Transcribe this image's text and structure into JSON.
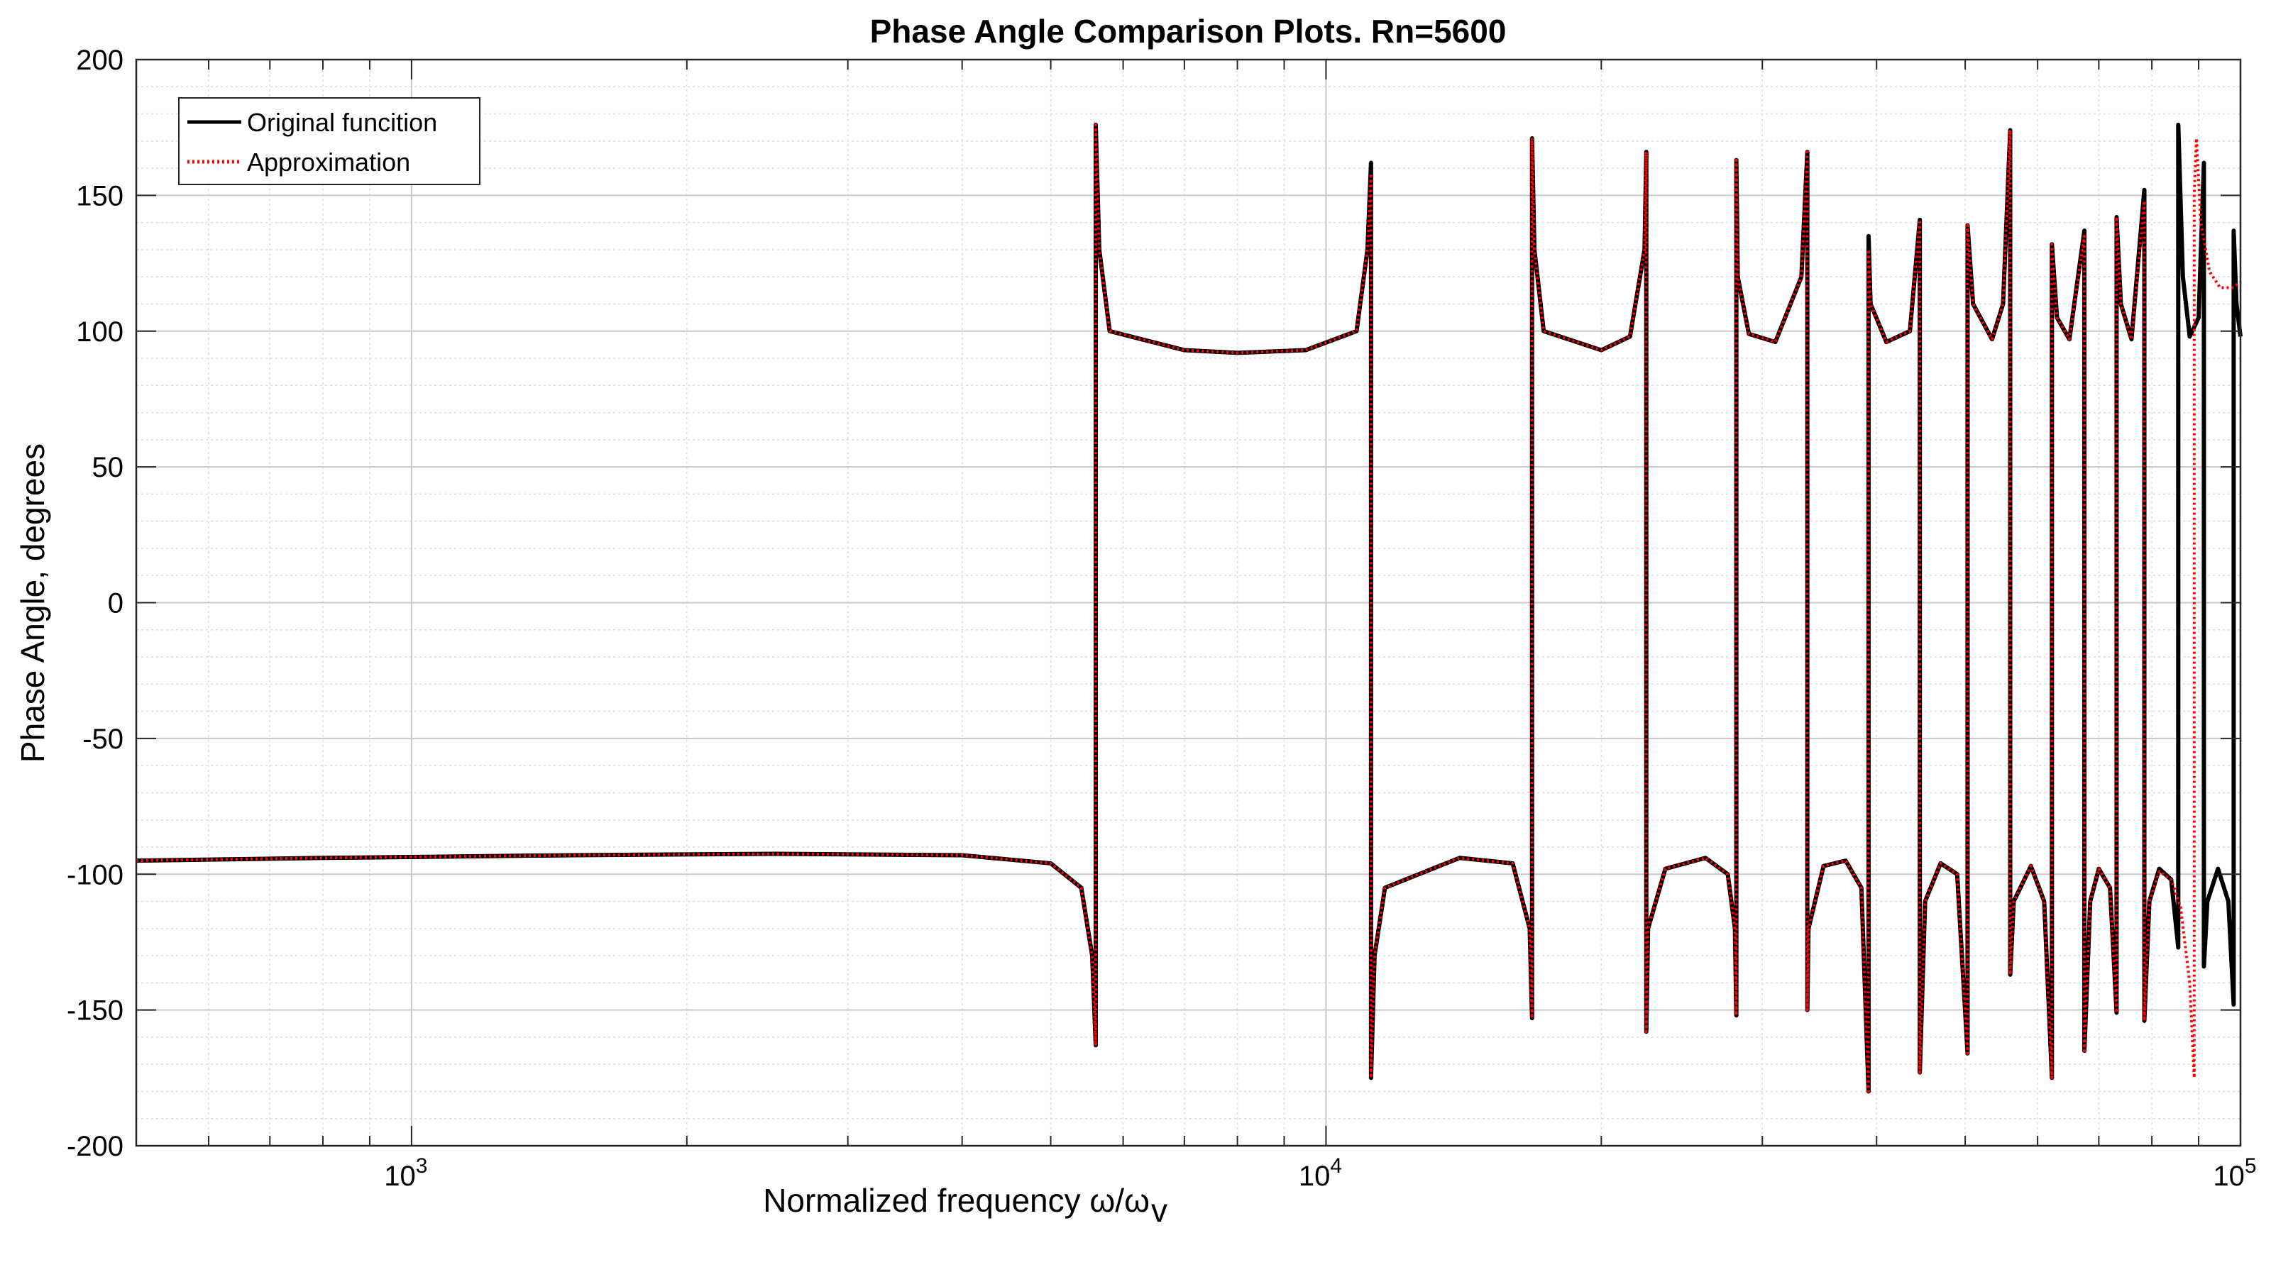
{
  "chart_data": {
    "type": "line",
    "title": "Phase Angle Comparison Plots. Rn=5600",
    "xlabel": "Normalized frequency ω/ω",
    "xlabel_subscript": "v",
    "ylabel": "Phase Angle, degrees",
    "xscale": "log",
    "xlim": [
      500,
      100000
    ],
    "ylim": [
      -200,
      200
    ],
    "yticks": [
      -200,
      -150,
      -100,
      -50,
      0,
      50,
      100,
      150,
      200
    ],
    "xticks": [
      {
        "value": 1000,
        "base": "10",
        "exp": "3"
      },
      {
        "value": 10000,
        "base": "10",
        "exp": "4"
      },
      {
        "value": 100000,
        "base": "10",
        "exp": "5"
      }
    ],
    "grid": true,
    "minor_grid": true,
    "legend_position": "top-left",
    "series": [
      {
        "name": "Original funcition",
        "color": "#000000",
        "style": "solid",
        "points": [
          [
            500,
            -95
          ],
          [
            800,
            -94
          ],
          [
            1500,
            -93
          ],
          [
            2500,
            -92.5
          ],
          [
            4000,
            -93
          ],
          [
            5000,
            -96
          ],
          [
            5400,
            -105
          ],
          [
            5550,
            -130
          ],
          [
            5600,
            -163
          ],
          [
            5600,
            176
          ],
          [
            5650,
            130
          ],
          [
            5800,
            100
          ],
          [
            7000,
            93
          ],
          [
            8000,
            92
          ],
          [
            9500,
            93
          ],
          [
            10800,
            100
          ],
          [
            11100,
            130
          ],
          [
            11200,
            162
          ],
          [
            11200,
            -175
          ],
          [
            11300,
            -130
          ],
          [
            11600,
            -105
          ],
          [
            14000,
            -94
          ],
          [
            16000,
            -96
          ],
          [
            16700,
            -120
          ],
          [
            16800,
            -153
          ],
          [
            16800,
            171
          ],
          [
            16900,
            130
          ],
          [
            17300,
            100
          ],
          [
            20000,
            93
          ],
          [
            21500,
            98
          ],
          [
            22300,
            130
          ],
          [
            22400,
            166
          ],
          [
            22400,
            -158
          ],
          [
            22500,
            -120
          ],
          [
            23500,
            -98
          ],
          [
            26000,
            -94
          ],
          [
            27500,
            -100
          ],
          [
            28000,
            -120
          ],
          [
            28100,
            -152
          ],
          [
            28100,
            163
          ],
          [
            28200,
            120
          ],
          [
            29000,
            99
          ],
          [
            31000,
            96
          ],
          [
            33100,
            120
          ],
          [
            33600,
            166
          ],
          [
            33600,
            -150
          ],
          [
            33700,
            -120
          ],
          [
            35000,
            -97
          ],
          [
            37000,
            -95
          ],
          [
            38500,
            -105
          ],
          [
            39200,
            -180
          ],
          [
            39200,
            135
          ],
          [
            39400,
            110
          ],
          [
            41000,
            96
          ],
          [
            43500,
            100
          ],
          [
            44600,
            141
          ],
          [
            44600,
            -173
          ],
          [
            45200,
            -110
          ],
          [
            47000,
            -96
          ],
          [
            49000,
            -100
          ],
          [
            50300,
            -166
          ],
          [
            50300,
            139
          ],
          [
            51000,
            110
          ],
          [
            53500,
            97
          ],
          [
            55000,
            110
          ],
          [
            56000,
            174
          ],
          [
            56000,
            -137
          ],
          [
            56500,
            -110
          ],
          [
            59000,
            -97
          ],
          [
            61000,
            -110
          ],
          [
            62200,
            -175
          ],
          [
            62200,
            132
          ],
          [
            63000,
            105
          ],
          [
            65000,
            97
          ],
          [
            67500,
            137
          ],
          [
            67500,
            -165
          ],
          [
            68500,
            -110
          ],
          [
            70000,
            -98
          ],
          [
            72000,
            -105
          ],
          [
            73200,
            -151
          ],
          [
            73200,
            142
          ],
          [
            74000,
            110
          ],
          [
            76000,
            97
          ],
          [
            78500,
            152
          ],
          [
            78500,
            -154
          ],
          [
            79500,
            -110
          ],
          [
            81500,
            -98
          ],
          [
            84000,
            -102
          ],
          [
            85500,
            -127
          ],
          [
            85500,
            176
          ],
          [
            86500,
            120
          ],
          [
            88000,
            98
          ],
          [
            90000,
            105
          ],
          [
            91200,
            162
          ],
          [
            91200,
            -134
          ],
          [
            92000,
            -110
          ],
          [
            94500,
            -98
          ],
          [
            97000,
            -110
          ],
          [
            98300,
            -148
          ],
          [
            98300,
            137
          ],
          [
            99000,
            110
          ],
          [
            100000,
            98
          ]
        ]
      },
      {
        "name": "Approximation",
        "color": "#ff0000",
        "style": "dotted",
        "points": [
          [
            500,
            -95
          ],
          [
            800,
            -94
          ],
          [
            1500,
            -93
          ],
          [
            2500,
            -92.5
          ],
          [
            4000,
            -93
          ],
          [
            5000,
            -96
          ],
          [
            5400,
            -105
          ],
          [
            5550,
            -130
          ],
          [
            5600,
            -163
          ],
          [
            5600,
            176
          ],
          [
            5650,
            130
          ],
          [
            5800,
            100
          ],
          [
            7000,
            93
          ],
          [
            8000,
            92
          ],
          [
            9500,
            93
          ],
          [
            10800,
            100
          ],
          [
            11100,
            130
          ],
          [
            11200,
            158
          ],
          [
            11200,
            -175
          ],
          [
            11300,
            -130
          ],
          [
            11600,
            -105
          ],
          [
            14000,
            -94
          ],
          [
            16000,
            -96
          ],
          [
            16700,
            -120
          ],
          [
            16800,
            -153
          ],
          [
            16800,
            171
          ],
          [
            16900,
            130
          ],
          [
            17300,
            100
          ],
          [
            20000,
            93
          ],
          [
            21500,
            98
          ],
          [
            22300,
            130
          ],
          [
            22400,
            166
          ],
          [
            22400,
            -158
          ],
          [
            22500,
            -120
          ],
          [
            23500,
            -98
          ],
          [
            26000,
            -94
          ],
          [
            27500,
            -100
          ],
          [
            28000,
            -120
          ],
          [
            28100,
            -152
          ],
          [
            28100,
            163
          ],
          [
            28200,
            120
          ],
          [
            29000,
            99
          ],
          [
            31000,
            96
          ],
          [
            33100,
            120
          ],
          [
            33600,
            166
          ],
          [
            33600,
            -150
          ],
          [
            33700,
            -120
          ],
          [
            35000,
            -97
          ],
          [
            37000,
            -95
          ],
          [
            38500,
            -105
          ],
          [
            39200,
            -180
          ],
          [
            39200,
            130
          ],
          [
            39400,
            110
          ],
          [
            41000,
            96
          ],
          [
            43500,
            100
          ],
          [
            44600,
            141
          ],
          [
            44600,
            -173
          ],
          [
            45200,
            -110
          ],
          [
            47000,
            -96
          ],
          [
            49000,
            -100
          ],
          [
            50300,
            -166
          ],
          [
            50300,
            139
          ],
          [
            51000,
            110
          ],
          [
            53500,
            97
          ],
          [
            55000,
            110
          ],
          [
            56000,
            174
          ],
          [
            56000,
            -137
          ],
          [
            56500,
            -110
          ],
          [
            59000,
            -97
          ],
          [
            61000,
            -110
          ],
          [
            62200,
            -175
          ],
          [
            62200,
            132
          ],
          [
            63000,
            105
          ],
          [
            65000,
            97
          ],
          [
            67500,
            135
          ],
          [
            67500,
            -165
          ],
          [
            68500,
            -110
          ],
          [
            70000,
            -98
          ],
          [
            72000,
            -105
          ],
          [
            73200,
            -151
          ],
          [
            73200,
            142
          ],
          [
            74000,
            110
          ],
          [
            76000,
            97
          ],
          [
            78500,
            148
          ],
          [
            78500,
            -154
          ],
          [
            79500,
            -110
          ],
          [
            81500,
            -99
          ],
          [
            84000,
            -102
          ],
          [
            86000,
            -112
          ],
          [
            88000,
            -140
          ],
          [
            89000,
            -175
          ],
          [
            89000,
            150
          ],
          [
            89500,
            171
          ],
          [
            90500,
            140
          ],
          [
            92500,
            122
          ],
          [
            95000,
            116
          ],
          [
            98000,
            116
          ],
          [
            100000,
            118
          ]
        ]
      }
    ]
  }
}
